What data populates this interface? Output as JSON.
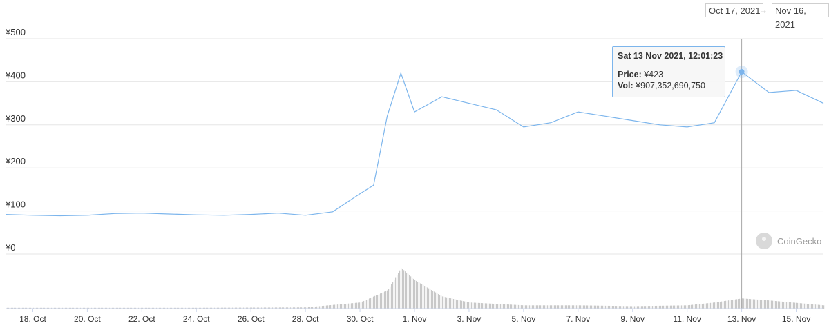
{
  "range": {
    "from": "Oct 17, 2021",
    "to": "Nov 16, 2021",
    "arrow": "→"
  },
  "tooltip": {
    "title": "Sat 13 Nov 2021, 12:01:23",
    "price_label": "Price:",
    "price_value": "¥423",
    "vol_label": "Vol:",
    "vol_value": "¥907,352,690,750"
  },
  "watermark": {
    "text": "CoinGecko"
  },
  "colors": {
    "price_line": "#7cb5ec",
    "volume_bar": "#c8c8c8",
    "grid": "#e6e6e6",
    "crosshair": "#a8a8a8"
  },
  "chart_data": {
    "type": "line",
    "title": "",
    "xlabel": "",
    "ylabel": "",
    "y_ticks": [
      "¥0",
      "¥100",
      "¥200",
      "¥300",
      "¥400",
      "¥500"
    ],
    "x_ticks": [
      "18. Oct",
      "20. Oct",
      "22. Oct",
      "24. Oct",
      "26. Oct",
      "28. Oct",
      "30. Oct",
      "1. Nov",
      "3. Nov",
      "5. Nov",
      "7. Nov",
      "9. Nov",
      "11. Nov",
      "13. Nov",
      "15. Nov"
    ],
    "ylim": [
      0,
      500
    ],
    "x_range_days": [
      "2021-10-17",
      "2021-11-16"
    ],
    "grid": true,
    "legend": "none",
    "highlight": {
      "date": "2021-11-13",
      "price": 423,
      "volume": 907352690750
    },
    "series": [
      {
        "x": [
          "2021-10-17",
          "2021-10-18",
          "2021-10-19",
          "2021-10-20",
          "2021-10-21",
          "2021-10-22",
          "2021-10-23",
          "2021-10-24",
          "2021-10-25",
          "2021-10-26",
          "2021-10-27",
          "2021-10-28",
          "2021-10-29",
          "2021-10-30",
          "2021-10-30T12:00",
          "2021-10-30T18:00",
          "2021-10-31",
          "2021-10-31T12:00",
          "2021-11-01",
          "2021-11-02",
          "2021-11-03",
          "2021-11-04",
          "2021-11-05",
          "2021-11-06",
          "2021-11-07",
          "2021-11-08",
          "2021-11-09",
          "2021-11-10",
          "2021-11-11",
          "2021-11-12",
          "2021-11-13",
          "2021-11-14",
          "2021-11-15",
          "2021-11-16"
        ],
        "values": [
          92,
          90,
          89,
          90,
          94,
          95,
          93,
          91,
          90,
          92,
          95,
          90,
          98,
          140,
          160,
          240,
          320,
          420,
          330,
          365,
          350,
          335,
          295,
          305,
          330,
          320,
          310,
          300,
          295,
          305,
          423,
          375,
          380,
          350
        ]
      }
    ],
    "volume": {
      "x": [
        "2021-10-17",
        "2021-10-20",
        "2021-10-24",
        "2021-10-28",
        "2021-10-30",
        "2021-10-31",
        "2021-10-31T12:00",
        "2021-11-01",
        "2021-11-02",
        "2021-11-03",
        "2021-11-05",
        "2021-11-07",
        "2021-11-09",
        "2021-11-11",
        "2021-11-12",
        "2021-11-13",
        "2021-11-14",
        "2021-11-16"
      ],
      "values": [
        2,
        2,
        2,
        3,
        15,
        45,
        100,
        70,
        30,
        15,
        8,
        8,
        6,
        8,
        15,
        25,
        20,
        8
      ]
    }
  }
}
